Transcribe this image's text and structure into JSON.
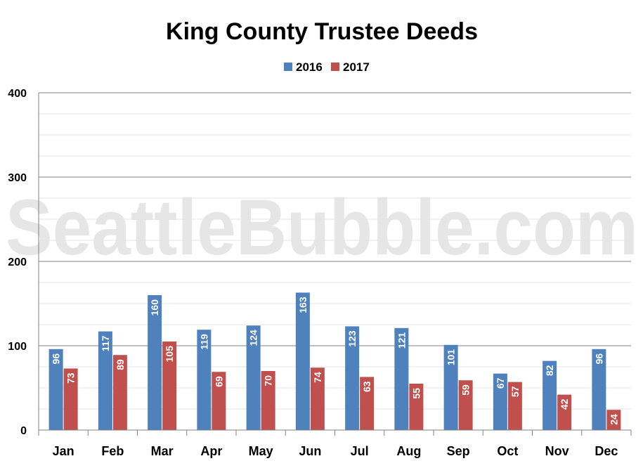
{
  "chart_data": {
    "type": "bar",
    "title": "King County Trustee Deeds",
    "watermark": "SeattleBubble.com",
    "categories": [
      "Jan",
      "Feb",
      "Mar",
      "Apr",
      "May",
      "Jun",
      "Jul",
      "Aug",
      "Sep",
      "Oct",
      "Nov",
      "Dec"
    ],
    "series": [
      {
        "name": "2016",
        "color": "#4f81bd",
        "values": [
          96,
          117,
          160,
          119,
          124,
          163,
          123,
          121,
          101,
          67,
          82,
          96
        ],
        "labels": [
          "96",
          "117",
          "160",
          "119",
          "124",
          "163",
          "123",
          "121",
          "101",
          "67",
          "82",
          "96"
        ]
      },
      {
        "name": "2017",
        "color": "#c0504d",
        "values": [
          73,
          89,
          105,
          69,
          70,
          74,
          63,
          55,
          59,
          57,
          42,
          24
        ],
        "labels": [
          "73",
          "89",
          "105",
          "69",
          "70",
          "74",
          "63",
          "55",
          "59",
          "57",
          "42",
          "24"
        ]
      }
    ],
    "ylim": [
      0,
      400
    ],
    "yticks": [
      "0",
      "100",
      "200",
      "300",
      "400"
    ],
    "legend_position": "top-center",
    "grid": true,
    "xlabel": "",
    "ylabel": ""
  }
}
